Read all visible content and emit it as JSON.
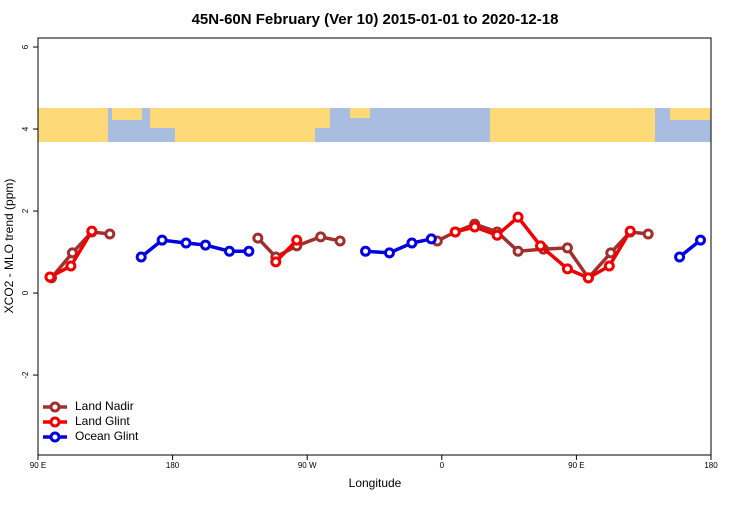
{
  "chart_data": {
    "type": "line",
    "title": "45N-60N February (Ver 10)   2015-01-01 to 2020-12-18",
    "x_label": "Longitude",
    "y_label": "XCO2 - MLO trend (ppm)",
    "xlim": [
      90,
      540
    ],
    "ylim": [
      -3.95,
      6.22
    ],
    "xticks": [
      {
        "value": 90,
        "label": "90 E"
      },
      180,
      {
        "value": 270,
        "label": "90 W"
      },
      {
        "value": 360,
        "label": "0"
      },
      {
        "value": 450,
        "label": "90 E"
      },
      {
        "value": 540,
        "label": "180"
      }
    ],
    "yticks": [
      -2,
      0,
      2,
      4,
      6
    ],
    "legend": "bottom-left",
    "series": [
      {
        "name": "Land Nadir",
        "color": "#a0302d",
        "x": [
          99,
          113,
          126,
          138,
          null,
          237,
          249,
          263,
          279,
          292,
          null,
          357,
          369,
          382,
          397,
          411,
          428,
          444,
          458,
          473,
          486,
          498
        ],
        "values": [
          0.37,
          0.98,
          1.49,
          1.44,
          null,
          1.34,
          0.88,
          1.15,
          1.37,
          1.27,
          null,
          1.27,
          1.49,
          1.68,
          1.49,
          1.02,
          1.07,
          1.1,
          0.37,
          0.98,
          1.49,
          1.44
        ]
      },
      {
        "name": "Land Glint",
        "color": "#f00000",
        "x": [
          98,
          112,
          126,
          null,
          249,
          263,
          null,
          369,
          382,
          397,
          411,
          426,
          444,
          458,
          472,
          486
        ],
        "values": [
          0.39,
          0.66,
          1.51,
          null,
          0.76,
          1.29,
          null,
          1.49,
          1.61,
          1.41,
          1.85,
          1.15,
          0.59,
          0.37,
          0.66,
          1.51
        ]
      },
      {
        "name": "Ocean Glint",
        "color": "#0000e0",
        "x": [
          159,
          173,
          189,
          202,
          218,
          231,
          null,
          309,
          325,
          340,
          353,
          null,
          519,
          533
        ],
        "values": [
          0.88,
          1.29,
          1.22,
          1.17,
          1.02,
          1.02,
          null,
          1.02,
          0.98,
          1.22,
          1.32,
          null,
          0.88,
          1.29
        ]
      }
    ]
  }
}
